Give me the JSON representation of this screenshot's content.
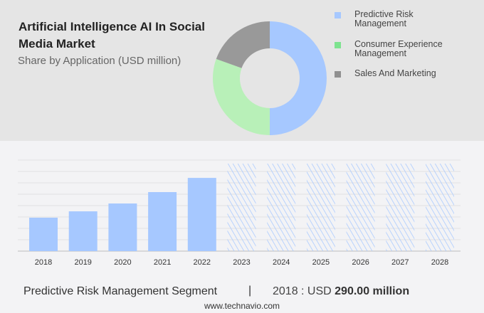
{
  "header": {
    "title": "Artificial Intelligence AI In Social Media Market",
    "subtitle": "Share by Application (USD million)"
  },
  "chart_data": [
    {
      "type": "pie",
      "donut": true,
      "slices": [
        {
          "name": "Predictive Risk Management",
          "value": 50,
          "color": "#a6c8ff"
        },
        {
          "name": "Consumer Experience Management",
          "value": 30.5,
          "color": "#b8f0b8"
        },
        {
          "name": "Sales And Marketing",
          "value": 19.5,
          "color": "#999999"
        }
      ],
      "legend_placement": "right"
    },
    {
      "type": "bar",
      "categories": [
        "2018",
        "2019",
        "2020",
        "2021",
        "2022",
        "2023",
        "2024",
        "2025",
        "2026",
        "2027",
        "2028"
      ],
      "values": [
        290,
        345,
        413,
        512,
        635,
        null,
        null,
        null,
        null,
        null,
        null
      ],
      "forecast_categories": [
        "2023",
        "2024",
        "2025",
        "2026",
        "2027",
        "2028"
      ],
      "color": "#a6c8ff",
      "grid": true,
      "ylim": [
        0,
        1000
      ]
    }
  ],
  "legend_colors": {
    "predictive": "#a6c8ff",
    "consumer": "#7de38f",
    "sales": "#909090"
  },
  "legend": [
    "Predictive Risk Management",
    "Consumer Experience Management",
    "Sales And Marketing"
  ],
  "footer": {
    "segment": "Predictive Risk Management Segment",
    "separator": "|",
    "year_label": "2018 : USD ",
    "value": "290.00 million",
    "url": "www.technavio.com"
  }
}
